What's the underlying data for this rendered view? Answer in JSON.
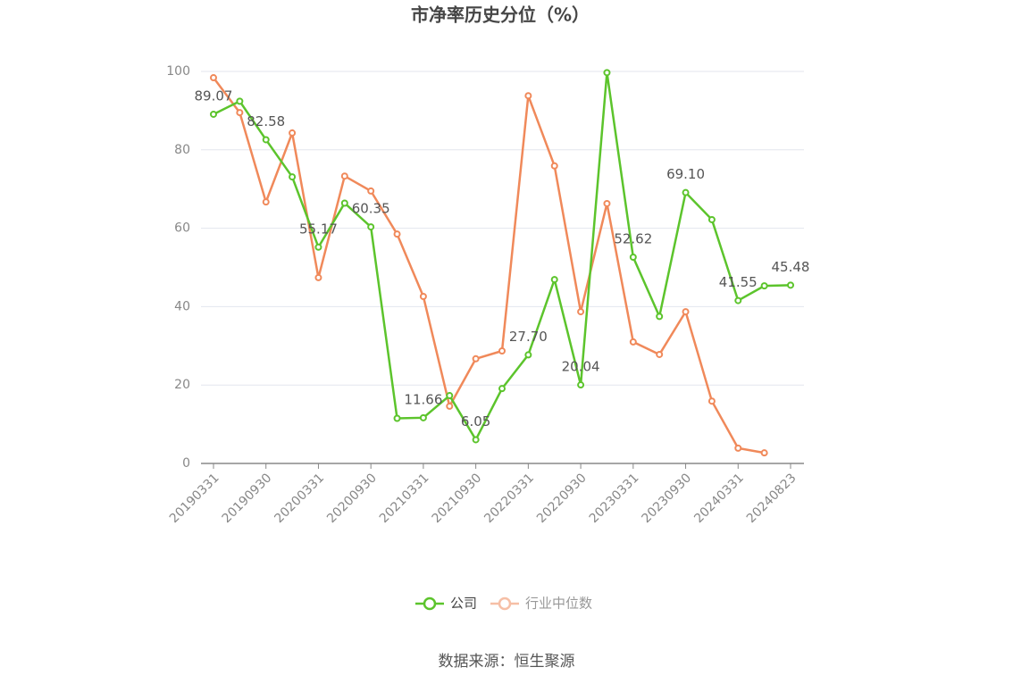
{
  "chart_data": {
    "type": "line",
    "title": "市净率历史分位（%）",
    "categories": [
      "20190331",
      null,
      "20190930",
      null,
      "20200331",
      null,
      "20200930",
      null,
      "20210331",
      null,
      "20210930",
      null,
      "20220331",
      null,
      "20220930",
      null,
      "20230331",
      null,
      "20230930",
      null,
      "20240331",
      null,
      "20240823"
    ],
    "series": [
      {
        "name": "公司",
        "color": "#5cc42c",
        "values": [
          89.07,
          92.4,
          82.58,
          73.1,
          55.17,
          66.4,
          60.35,
          11.5,
          11.66,
          17.3,
          6.05,
          19.1,
          27.7,
          46.9,
          20.04,
          99.7,
          52.62,
          37.5,
          69.1,
          62.2,
          41.55,
          45.3,
          45.48
        ],
        "value_labels": [
          "89.07",
          null,
          "82.58",
          null,
          "55.17",
          null,
          "60.35",
          null,
          "11.66",
          null,
          "6.05",
          null,
          "27.70",
          null,
          "20.04",
          null,
          "52.62",
          null,
          "69.10",
          null,
          "41.55",
          null,
          "45.48"
        ]
      },
      {
        "name": "行业中位数",
        "color": "#f0895a",
        "values": [
          98.4,
          89.5,
          66.7,
          84.3,
          47.4,
          73.3,
          69.5,
          58.5,
          42.6,
          14.6,
          26.7,
          28.7,
          93.8,
          75.9,
          38.7,
          66.3,
          31.0,
          27.8,
          38.7,
          15.9,
          3.9,
          2.7,
          null
        ]
      }
    ],
    "ylim": [
      0,
      100
    ],
    "yticks": [
      0,
      20,
      40,
      60,
      80,
      100
    ],
    "grid": true,
    "legend": "bottom",
    "source": "数据来源：恒生聚源"
  }
}
